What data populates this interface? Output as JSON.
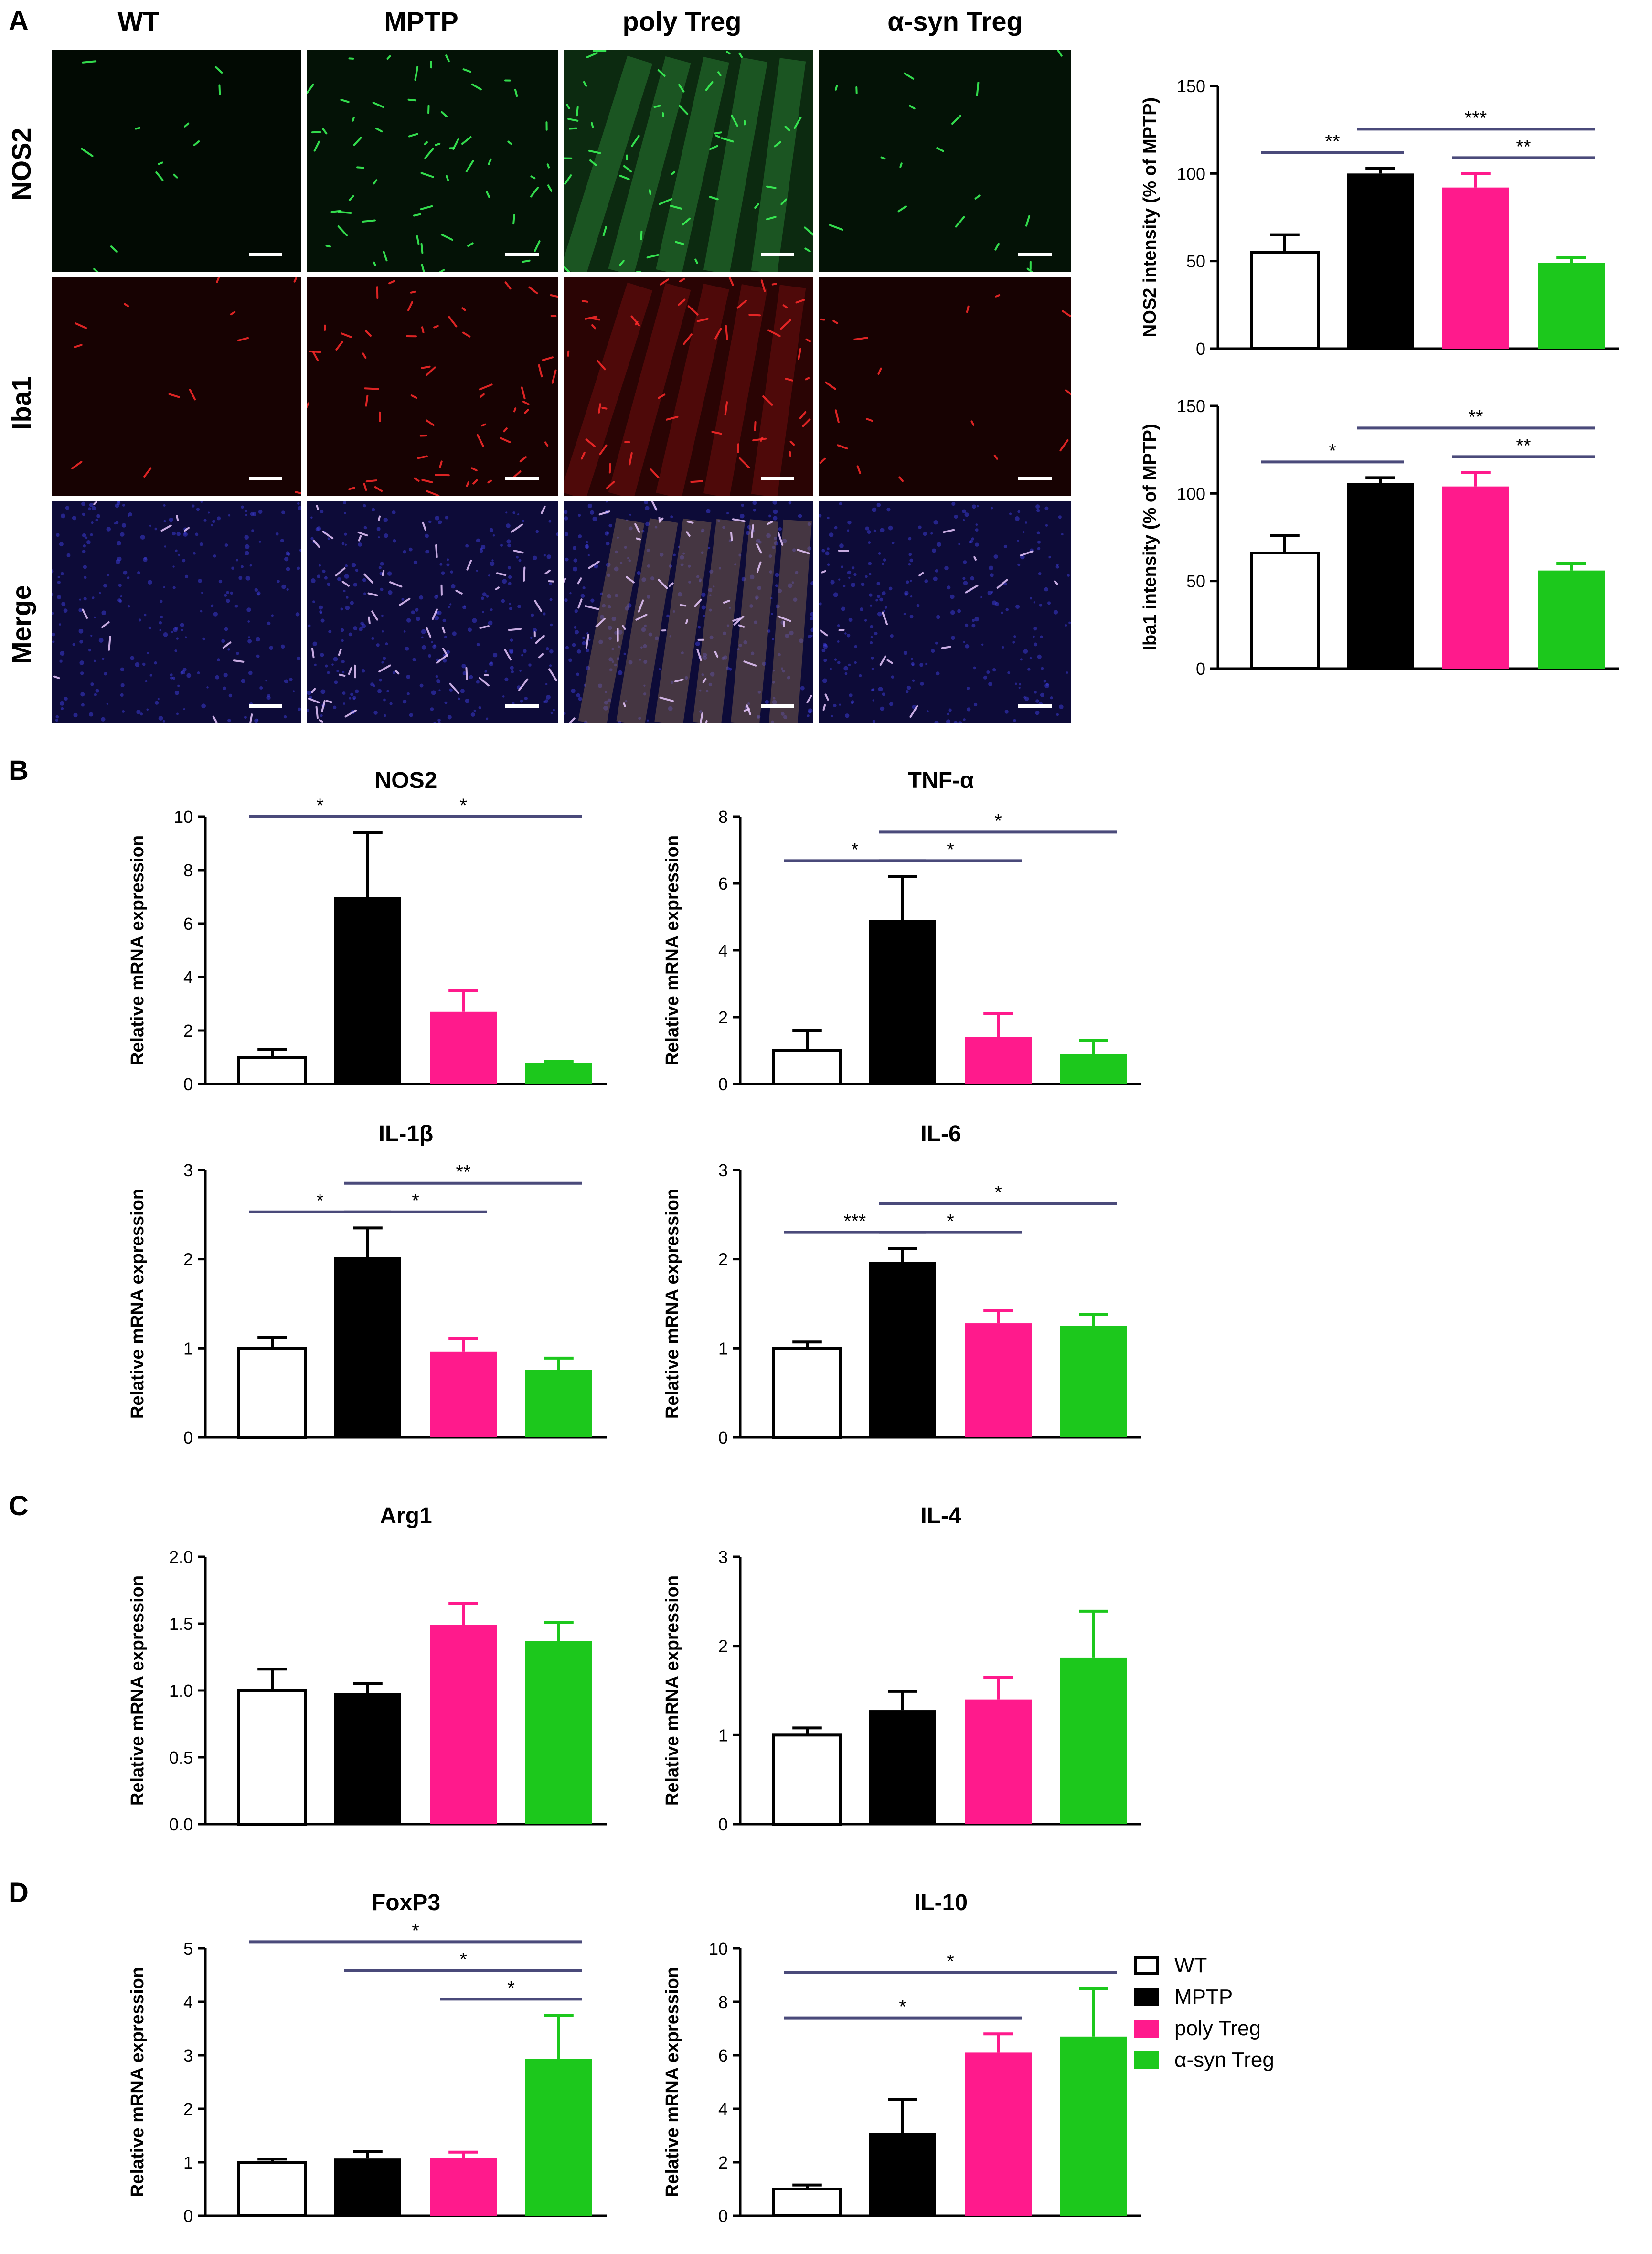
{
  "panel_labels": [
    "A",
    "B",
    "C",
    "D"
  ],
  "panel_a": {
    "columns": [
      "WT",
      "MPTP",
      "poly Treg",
      "α-syn Treg"
    ],
    "rows": [
      "NOS2",
      "Iba1",
      "Merge"
    ]
  },
  "colors": {
    "WT": "#ffffff",
    "MPTP": "#000000",
    "poly Treg": "#ff1a8c",
    "α-syn Treg": "#1cc81c",
    "significance_line": "#4a4a7a"
  },
  "legend": {
    "items": [
      {
        "name": "WT",
        "color": "#ffffff"
      },
      {
        "name": "MPTP",
        "color": "#000000"
      },
      {
        "name": "poly Treg",
        "color": "#ff1a8c"
      },
      {
        "name": "α-syn Treg",
        "color": "#1cc81c"
      }
    ]
  },
  "chart_data": [
    {
      "id": "a-nos2",
      "type": "bar",
      "title": "",
      "ylabel": "NOS2 intensity (% of MPTP)",
      "ylim": [
        0,
        150
      ],
      "yticks": [
        "0",
        "50",
        "100",
        "150"
      ],
      "categories": [
        "WT",
        "MPTP",
        "poly Treg",
        "α-syn Treg"
      ],
      "values": [
        55,
        100,
        92,
        49
      ],
      "errors": [
        10,
        3,
        8,
        3
      ],
      "significance": [
        {
          "from": 0,
          "to": 1,
          "label": "**"
        },
        {
          "from": 1,
          "to": 3,
          "label": "***"
        },
        {
          "from": 2,
          "to": 3,
          "label": "**"
        }
      ]
    },
    {
      "id": "a-iba1",
      "type": "bar",
      "title": "",
      "ylabel": "Iba1 intensity (% of MPTP)",
      "ylim": [
        0,
        150
      ],
      "yticks": [
        "0",
        "50",
        "100",
        "150"
      ],
      "categories": [
        "WT",
        "MPTP",
        "poly Treg",
        "α-syn Treg"
      ],
      "values": [
        66,
        106,
        104,
        56
      ],
      "errors": [
        10,
        3,
        8,
        4
      ],
      "significance": [
        {
          "from": 0,
          "to": 1,
          "label": "*"
        },
        {
          "from": 1,
          "to": 3,
          "label": "**"
        },
        {
          "from": 2,
          "to": 3,
          "label": "**"
        }
      ]
    },
    {
      "id": "b-nos2",
      "type": "bar",
      "title": "NOS2",
      "ylabel": "Relative mRNA expression",
      "ylim": [
        0,
        10
      ],
      "yticks": [
        "0",
        "2",
        "4",
        "6",
        "8",
        "10"
      ],
      "categories": [
        "WT",
        "MPTP",
        "poly Treg",
        "α-syn Treg"
      ],
      "values": [
        1.0,
        7.0,
        2.7,
        0.8
      ],
      "errors": [
        0.3,
        2.4,
        0.8,
        0.05
      ],
      "significance": [
        {
          "from": 0,
          "to": 1,
          "label": "*"
        },
        {
          "from": 1,
          "to": 3,
          "label": "*"
        }
      ]
    },
    {
      "id": "b-tnf",
      "type": "bar",
      "title": "TNF-α",
      "ylabel": "Relative mRNA expression",
      "ylim": [
        0,
        8
      ],
      "yticks": [
        "0",
        "2",
        "4",
        "6",
        "8"
      ],
      "categories": [
        "WT",
        "MPTP",
        "poly Treg",
        "α-syn Treg"
      ],
      "values": [
        1.0,
        4.9,
        1.4,
        0.9
      ],
      "errors": [
        0.6,
        1.3,
        0.7,
        0.4
      ],
      "significance": [
        {
          "from": 0,
          "to": 1,
          "label": "*"
        },
        {
          "from": 1,
          "to": 2,
          "label": "*"
        },
        {
          "from": 1,
          "to": 3,
          "label": "*"
        }
      ]
    },
    {
      "id": "b-il1b",
      "type": "bar",
      "title": "IL-1β",
      "ylabel": "Relative mRNA expression",
      "ylim": [
        0,
        3
      ],
      "yticks": [
        "0",
        "1",
        "2",
        "3"
      ],
      "categories": [
        "WT",
        "MPTP",
        "poly Treg",
        "α-syn Treg"
      ],
      "values": [
        1.0,
        2.02,
        0.96,
        0.76
      ],
      "errors": [
        0.12,
        0.33,
        0.15,
        0.13
      ],
      "significance": [
        {
          "from": 0,
          "to": 1,
          "label": "*"
        },
        {
          "from": 1,
          "to": 2,
          "label": "*"
        },
        {
          "from": 1,
          "to": 3,
          "label": "**"
        }
      ]
    },
    {
      "id": "b-il6",
      "type": "bar",
      "title": "IL-6",
      "ylabel": "Relative mRNA expression",
      "ylim": [
        0,
        3
      ],
      "yticks": [
        "0",
        "1",
        "2",
        "3"
      ],
      "categories": [
        "WT",
        "MPTP",
        "poly Treg",
        "α-syn Treg"
      ],
      "values": [
        1.0,
        1.97,
        1.28,
        1.25
      ],
      "errors": [
        0.07,
        0.15,
        0.14,
        0.13
      ],
      "significance": [
        {
          "from": 0,
          "to": 1,
          "label": "***"
        },
        {
          "from": 1,
          "to": 2,
          "label": "*"
        },
        {
          "from": 1,
          "to": 3,
          "label": "*"
        }
      ]
    },
    {
      "id": "c-arg1",
      "type": "bar",
      "title": "Arg1",
      "ylabel": "Relative mRNA expression",
      "ylim": [
        0,
        2.0
      ],
      "yticks": [
        "0.0",
        "0.5",
        "1.0",
        "1.5",
        "2.0"
      ],
      "categories": [
        "WT",
        "MPTP",
        "poly Treg",
        "α-syn Treg"
      ],
      "values": [
        1.0,
        0.98,
        1.49,
        1.37
      ],
      "errors": [
        0.16,
        0.07,
        0.16,
        0.14
      ],
      "significance": []
    },
    {
      "id": "c-il4",
      "type": "bar",
      "title": "IL-4",
      "ylabel": "Relative mRNA expression",
      "ylim": [
        0,
        3
      ],
      "yticks": [
        "0",
        "1",
        "2",
        "3"
      ],
      "categories": [
        "WT",
        "MPTP",
        "poly Treg",
        "α-syn Treg"
      ],
      "values": [
        1.0,
        1.28,
        1.4,
        1.87
      ],
      "errors": [
        0.08,
        0.21,
        0.25,
        0.52
      ],
      "significance": []
    },
    {
      "id": "d-foxp3",
      "type": "bar",
      "title": "FoxP3",
      "ylabel": "Relative mRNA expression",
      "ylim": [
        0,
        5
      ],
      "yticks": [
        "0",
        "1",
        "2",
        "3",
        "4",
        "5"
      ],
      "categories": [
        "WT",
        "MPTP",
        "poly Treg",
        "α-syn Treg"
      ],
      "values": [
        1.0,
        1.07,
        1.08,
        2.93
      ],
      "errors": [
        0.06,
        0.13,
        0.11,
        0.82
      ],
      "significance": [
        {
          "from": 0,
          "to": 3,
          "label": "*"
        },
        {
          "from": 1,
          "to": 3,
          "label": "*"
        },
        {
          "from": 2,
          "to": 3,
          "label": "*"
        }
      ]
    },
    {
      "id": "d-il10",
      "type": "bar",
      "title": "IL-10",
      "ylabel": "Relative mRNA expression",
      "ylim": [
        0,
        10
      ],
      "yticks": [
        "0",
        "2",
        "4",
        "6",
        "8",
        "10"
      ],
      "categories": [
        "WT",
        "MPTP",
        "poly Treg",
        "α-syn Treg"
      ],
      "values": [
        1.0,
        3.1,
        6.1,
        6.7
      ],
      "errors": [
        0.15,
        1.25,
        0.7,
        1.8
      ],
      "significance": [
        {
          "from": 0,
          "to": 2,
          "label": "*"
        },
        {
          "from": 0,
          "to": 3,
          "label": "*"
        }
      ]
    }
  ]
}
